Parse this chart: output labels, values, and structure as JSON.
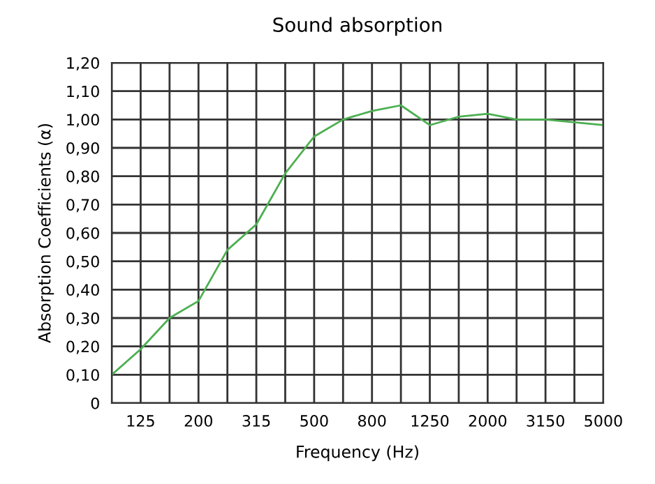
{
  "chart_data": {
    "type": "line",
    "title": "Sound absorption",
    "xlabel": "Frequency (Hz)",
    "ylabel": "Absorption Coefficients (α)",
    "categories": [
      null,
      "125",
      null,
      "200",
      null,
      "315",
      null,
      "500",
      null,
      "800",
      null,
      "1250",
      null,
      "2000",
      null,
      "3150",
      null,
      "5000"
    ],
    "series": [
      {
        "color": "#4caf50",
        "values": [
          0.1,
          0.19,
          0.3,
          0.36,
          0.54,
          0.63,
          0.81,
          0.94,
          1.0,
          1.03,
          1.05,
          0.98,
          1.01,
          1.02,
          1.0,
          1.0,
          0.99,
          0.98
        ]
      }
    ],
    "ylim": [
      0,
      1.2
    ],
    "yticks": [
      0,
      {
        "value": 0.1,
        "label": "0,10"
      },
      {
        "value": 0.2,
        "label": "0,20"
      },
      {
        "value": 0.3,
        "label": "0,30"
      },
      {
        "value": 0.4,
        "label": "0,40"
      },
      {
        "value": 0.5,
        "label": "0,50"
      },
      {
        "value": 0.6,
        "label": "0,60"
      },
      {
        "value": 0.7,
        "label": "0,70"
      },
      {
        "value": 0.8,
        "label": "0,80"
      },
      {
        "value": 0.9,
        "label": "0,90"
      },
      {
        "value": 1.0,
        "label": "1,00"
      },
      {
        "value": 1.1,
        "label": "1,10"
      },
      {
        "value": 1.2,
        "label": "1,20"
      }
    ],
    "grid": true,
    "legend": false,
    "marker": "none",
    "line_style": "solid"
  }
}
